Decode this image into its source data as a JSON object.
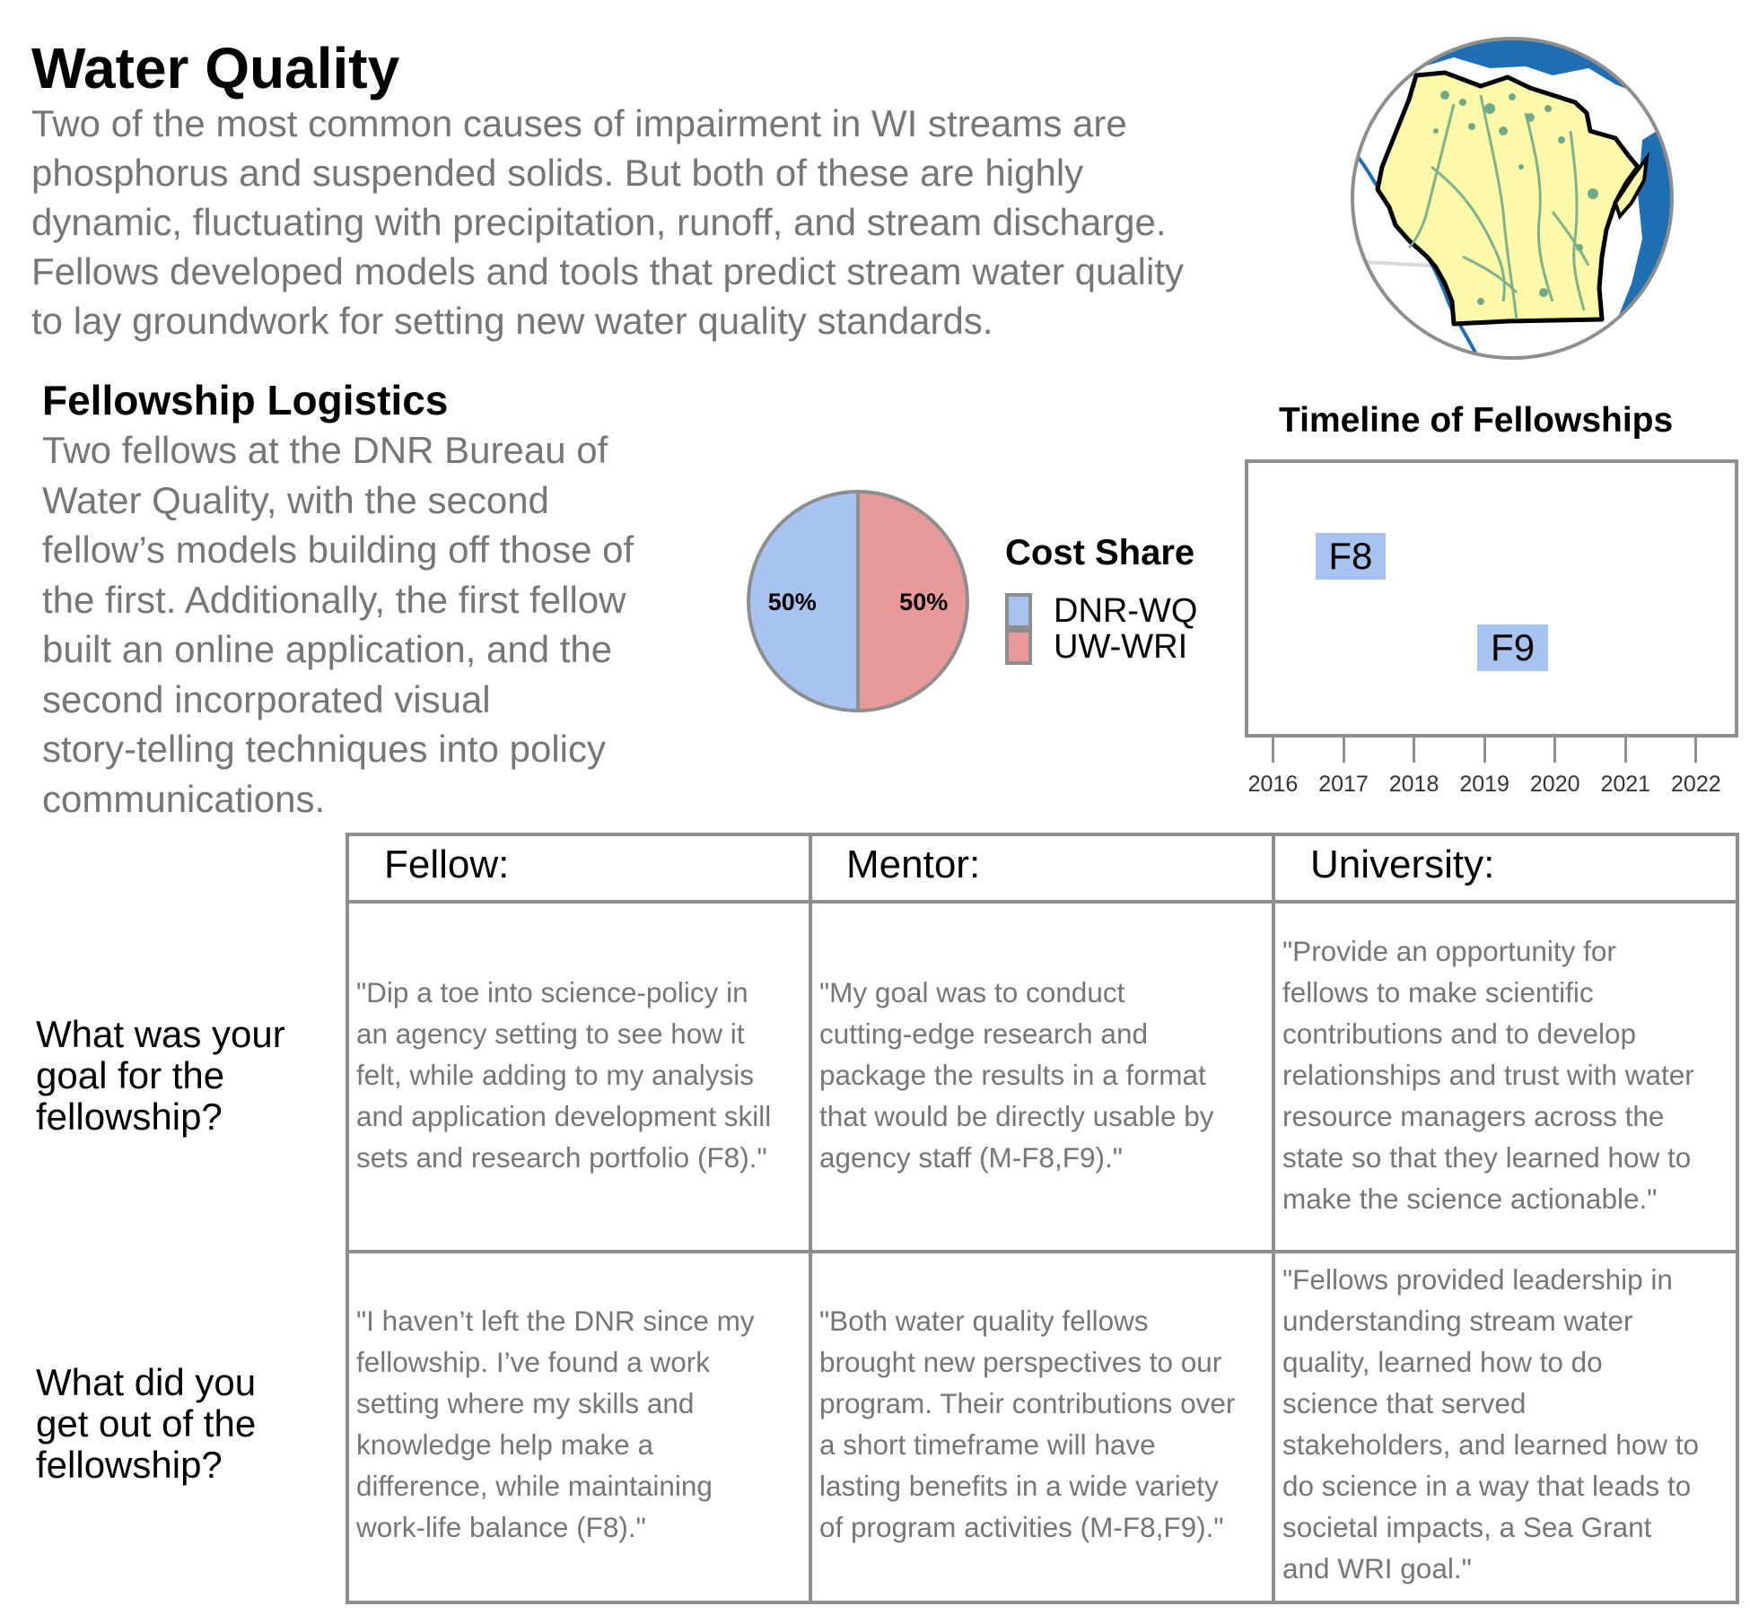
{
  "title": "Water Quality",
  "intro_lines": [
    "Two of the most common causes of impairment in WI streams are",
    "phosphorus and suspended solids. But both of these are highly",
    "dynamic, fluctuating with precipitation, runoff, and stream discharge.",
    "Fellows developed models and tools that predict stream water quality",
    "to lay groundwork for setting new water quality standards."
  ],
  "map": {
    "icon": "wisconsin-map-icon",
    "land_color": "#fdf9a8",
    "water_color": "#1f6fb5",
    "stream_color": "#6fab8a"
  },
  "logistics": {
    "title": "Fellowship Logistics",
    "lines": [
      "Two fellows at the DNR Bureau of",
      "Water Quality, with the second",
      "fellow’s models building off those of",
      "the first. Additionally, the first fellow",
      "built an online application, and the",
      "second incorporated visual",
      "story-telling techniques into policy",
      "communications."
    ]
  },
  "cost_share": {
    "title": "Cost Share",
    "slices": [
      {
        "name": "DNR-WQ",
        "value": 50,
        "label": "50%",
        "color": "#a8c3f0"
      },
      {
        "name": "UW-WRI",
        "value": 50,
        "label": "50%",
        "color": "#e89999"
      }
    ]
  },
  "chart_data": {
    "type": "bar",
    "title": "Timeline of Fellowships",
    "xlim": [
      2015.6,
      2022.6
    ],
    "ticks": [
      2016,
      2017,
      2018,
      2019,
      2020,
      2021,
      2022
    ],
    "series": [
      {
        "name": "F8",
        "start": 2016.6,
        "end": 2017.6
      },
      {
        "name": "F9",
        "start": 2018.9,
        "end": 2019.9
      }
    ],
    "bar_color": "#a8c3f0"
  },
  "table": {
    "headers": [
      "Fellow:",
      "Mentor:",
      "University:"
    ],
    "rows": [
      {
        "question_lines": [
          "What was your",
          "goal for the",
          "fellowship?"
        ],
        "cells": [
          [
            "\"Dip a toe into science-policy in",
            "an agency setting to see how it",
            "felt, while adding to my analysis",
            "and application development skill",
            "sets and research portfolio (F8).\""
          ],
          [
            "\"My goal was to conduct",
            "cutting-edge research and",
            "package the results in a format",
            "that would be directly usable by",
            "agency staff (M-F8,F9).\""
          ],
          [
            "\"Provide an opportunity for",
            "fellows to make scientific",
            "contributions and to develop",
            "relationships and trust with water",
            "resource managers across the",
            "state so that they learned how to",
            "make the science actionable.\""
          ]
        ]
      },
      {
        "question_lines": [
          "What did you",
          "get out of the",
          "fellowship?"
        ],
        "cells": [
          [
            "\"I haven’t left the DNR since my",
            "fellowship. I’ve found a work",
            "setting where my skills and",
            "knowledge help make a",
            "difference, while maintaining",
            "work-life balance (F8).\""
          ],
          [
            "\"Both water quality fellows",
            "brought new perspectives to our",
            "program. Their contributions over",
            "a short timeframe will have",
            "lasting benefits in a wide variety",
            "of program activities (M-F8,F9).\""
          ],
          [
            "\"Fellows provided leadership in",
            "understanding stream water",
            "quality, learned how to do",
            "science that served",
            "stakeholders, and learned how to",
            "do science in a way that leads to",
            "societal impacts, a Sea Grant",
            "and WRI goal.\""
          ]
        ]
      }
    ]
  }
}
